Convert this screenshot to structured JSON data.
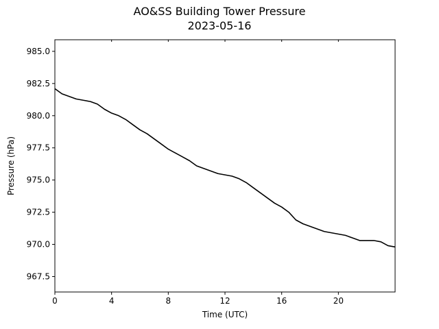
{
  "chart_data": {
    "type": "line",
    "title": "AO&SS Building Tower Pressure",
    "subtitle": "2023-05-16",
    "xlabel": "Time (UTC)",
    "ylabel": "Pressure (hPa)",
    "xlim": [
      0,
      24
    ],
    "ylim": [
      966.3,
      985.9
    ],
    "x_ticks": [
      0,
      4,
      8,
      12,
      16,
      20
    ],
    "x_tick_labels": [
      "0",
      "4",
      "8",
      "12",
      "16",
      "20"
    ],
    "y_ticks": [
      967.5,
      970.0,
      972.5,
      975.0,
      977.5,
      980.0,
      982.5,
      985.0
    ],
    "y_tick_labels": [
      "967.5",
      "970.0",
      "972.5",
      "975.0",
      "977.5",
      "980.0",
      "982.5",
      "985.0"
    ],
    "grid": false,
    "line_color": "#000000",
    "series": [
      {
        "x": [
          0,
          0.5,
          1,
          1.5,
          2,
          2.5,
          3,
          3.5,
          4,
          4.5,
          5,
          5.5,
          6,
          6.5,
          7,
          7.5,
          8,
          8.5,
          9,
          9.5,
          10,
          10.5,
          11,
          11.5,
          12,
          12.5,
          13,
          13.5,
          14,
          14.5,
          15,
          15.5,
          16,
          16.5,
          17,
          17.5,
          18,
          18.5,
          19,
          19.5,
          20,
          20.5,
          21,
          21.5,
          22,
          22.5,
          23,
          23.5,
          24
        ],
        "y": [
          982.1,
          981.7,
          981.5,
          981.3,
          981.2,
          981.1,
          980.9,
          980.5,
          980.2,
          980.0,
          979.7,
          979.3,
          978.9,
          978.6,
          978.2,
          977.8,
          977.4,
          977.1,
          976.8,
          976.5,
          976.1,
          975.9,
          975.7,
          975.5,
          975.4,
          975.3,
          975.1,
          974.8,
          974.4,
          974.0,
          973.6,
          973.2,
          972.9,
          972.5,
          971.9,
          971.6,
          971.4,
          971.2,
          971.0,
          970.9,
          970.8,
          970.7,
          970.5,
          970.3,
          970.3,
          970.3,
          970.2,
          969.9,
          969.8
        ]
      }
    ]
  }
}
